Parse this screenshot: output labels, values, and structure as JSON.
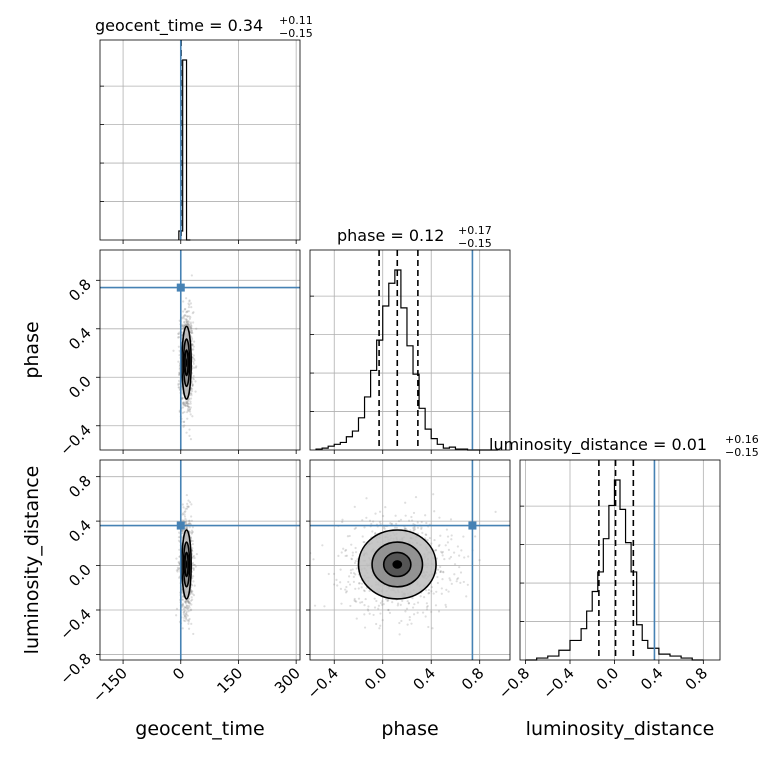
{
  "chart_data": {
    "type": "corner",
    "parameters": [
      "geocent_time",
      "phase",
      "luminosity_distance"
    ],
    "truth_color": "#4682b4",
    "titles": [
      {
        "param": "geocent_time",
        "label": "geocent_time = 0.34",
        "median": 0.34,
        "plus": "+0.11",
        "minus": "−0.15"
      },
      {
        "param": "phase",
        "label": "phase = 0.12",
        "median": 0.12,
        "plus": "+0.17",
        "minus": "−0.15"
      },
      {
        "param": "luminosity_distance",
        "label": "luminosity_distance = 0.01",
        "median": 0.01,
        "plus": "+0.16",
        "minus": "−0.15"
      }
    ],
    "axes": {
      "geocent_time": {
        "range": [
          -210,
          310
        ],
        "ticks": [
          -150,
          0,
          150,
          300
        ],
        "tick_labels": [
          "−150",
          "0",
          "150",
          "300"
        ]
      },
      "phase": {
        "range": [
          -0.6,
          1.05
        ],
        "ticks": [
          -0.4,
          0.0,
          0.4,
          0.8
        ],
        "tick_labels": [
          "−0.4",
          "0.0",
          "0.4",
          "0.8"
        ]
      },
      "luminosity_distance": {
        "range": [
          -0.85,
          0.95
        ],
        "ticks": [
          -0.8,
          -0.4,
          0.0,
          0.4,
          0.8
        ],
        "tick_labels": [
          "−0.8",
          "−0.4",
          "0.0",
          "0.4",
          "0.8"
        ]
      }
    },
    "axis_labels": {
      "x": [
        "geocent_time",
        "phase",
        "luminosity_distance"
      ],
      "y": [
        "phase",
        "luminosity_distance"
      ]
    },
    "truths": {
      "geocent_time": 0.0,
      "phase": 0.74,
      "luminosity_distance": 0.36
    },
    "quantiles": {
      "geocent_time": [
        0.19,
        0.34,
        0.45
      ],
      "phase": [
        -0.03,
        0.12,
        0.29
      ],
      "luminosity_distance": [
        -0.14,
        0.01,
        0.17
      ]
    },
    "histograms": {
      "geocent_time": {
        "edges": [
          -5,
          5,
          15,
          25
        ],
        "counts": [
          0.05,
          1.0,
          0
        ]
      },
      "phase": {
        "edges": [
          -0.55,
          -0.5,
          -0.45,
          -0.4,
          -0.35,
          -0.3,
          -0.25,
          -0.2,
          -0.15,
          -0.1,
          -0.05,
          0.0,
          0.05,
          0.1,
          0.15,
          0.2,
          0.25,
          0.3,
          0.35,
          0.4,
          0.45,
          0.5,
          0.55,
          0.6,
          0.65,
          0.7,
          0.75,
          0.8,
          0.85,
          0.9,
          0.95
        ],
        "counts": [
          0.005,
          0.01,
          0.02,
          0.03,
          0.04,
          0.07,
          0.1,
          0.17,
          0.28,
          0.42,
          0.58,
          0.76,
          0.88,
          0.95,
          0.75,
          0.55,
          0.4,
          0.22,
          0.11,
          0.06,
          0.03,
          0.01,
          0.015,
          0.005,
          0.005,
          0.0,
          0.0,
          0.0,
          0.0,
          0.0
        ]
      },
      "luminosity_distance": {
        "edges": [
          -0.8,
          -0.7,
          -0.6,
          -0.5,
          -0.4,
          -0.3,
          -0.25,
          -0.2,
          -0.15,
          -0.1,
          -0.05,
          0.0,
          0.05,
          0.1,
          0.15,
          0.2,
          0.25,
          0.3,
          0.4,
          0.5,
          0.6,
          0.7,
          0.8
        ],
        "counts": [
          0.0,
          0.01,
          0.02,
          0.05,
          0.1,
          0.16,
          0.25,
          0.35,
          0.45,
          0.62,
          0.79,
          0.92,
          0.77,
          0.6,
          0.45,
          0.18,
          0.1,
          0.06,
          0.03,
          0.02,
          0.01,
          0.0
        ]
      }
    },
    "contours_2d": [
      {
        "x": "geocent_time",
        "y": "phase",
        "center": [
          15,
          0.12
        ],
        "sigma": [
          6,
          0.15
        ]
      },
      {
        "x": "geocent_time",
        "y": "luminosity_distance",
        "center": [
          15,
          0.01
        ],
        "sigma": [
          6,
          0.155
        ]
      },
      {
        "x": "phase",
        "y": "luminosity_distance",
        "center": [
          0.12,
          0.01
        ],
        "sigma": [
          0.16,
          0.155
        ]
      }
    ],
    "grid": true
  }
}
